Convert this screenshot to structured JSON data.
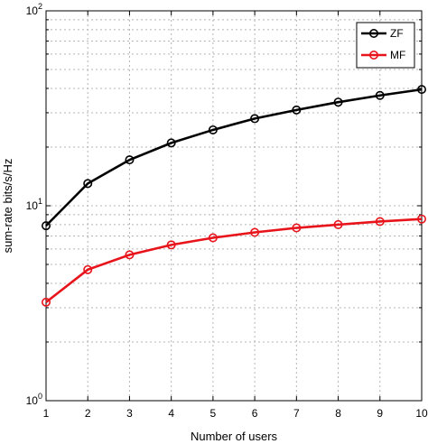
{
  "chart_data": {
    "type": "line",
    "title": "",
    "xlabel": "Number of users",
    "ylabel": "sum-rate bits/s/Hz",
    "yscale": "log",
    "x": [
      1,
      2,
      3,
      4,
      5,
      6,
      7,
      8,
      9,
      10
    ],
    "xlim": [
      1,
      10
    ],
    "ylim": [
      1,
      100
    ],
    "x_tick_labels": [
      "1",
      "2",
      "3",
      "4",
      "5",
      "6",
      "7",
      "8",
      "9",
      "10"
    ],
    "y_ticks": [
      {
        "base": "10",
        "exp": "0"
      },
      {
        "base": "10",
        "exp": "1"
      },
      {
        "base": "10",
        "exp": "2"
      }
    ],
    "grid": true,
    "legend_position": "top-right",
    "series": [
      {
        "name": "ZF",
        "color": "#000000",
        "marker": "circle",
        "values": [
          7.9,
          13.0,
          17.2,
          21.0,
          24.5,
          28.0,
          31.0,
          34.0,
          36.8,
          39.5
        ]
      },
      {
        "name": "MF",
        "color": "#e8141b",
        "marker": "circle",
        "values": [
          3.2,
          4.7,
          5.6,
          6.3,
          6.85,
          7.3,
          7.7,
          8.0,
          8.3,
          8.55
        ]
      }
    ]
  }
}
